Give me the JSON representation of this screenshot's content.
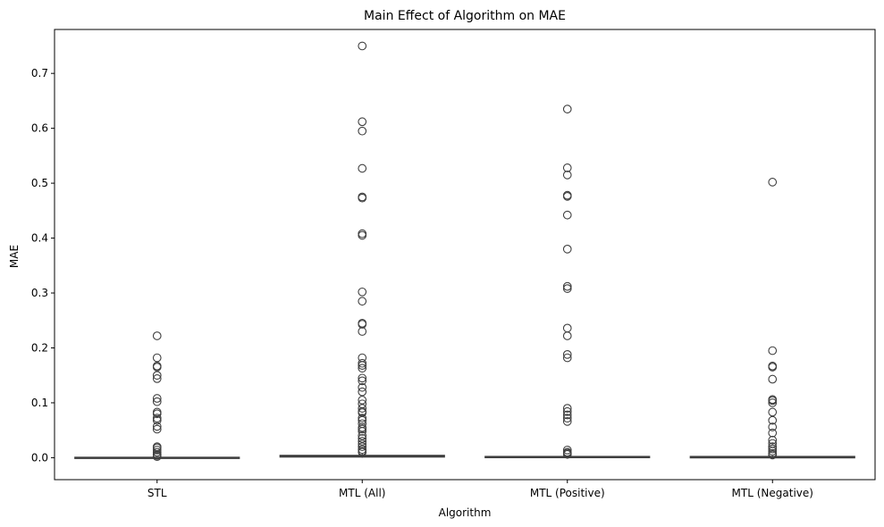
{
  "chart_data": {
    "type": "box",
    "title": "Main Effect of Algorithm on MAE",
    "xlabel": "Algorithm",
    "ylabel": "MAE",
    "ylim": [
      -0.04,
      0.78
    ],
    "yticks": [
      0.0,
      0.1,
      0.2,
      0.3,
      0.4,
      0.5,
      0.6,
      0.7
    ],
    "ytick_labels": [
      "0.0",
      "0.1",
      "0.2",
      "0.3",
      "0.4",
      "0.5",
      "0.6",
      "0.7"
    ],
    "grid": false,
    "box_color": "#3f3f3f",
    "categories": [
      "STL",
      "MTL (All)",
      "MTL (Positive)",
      "MTL (Negative)"
    ],
    "boxes": [
      {
        "category": "STL",
        "whisker_low": 0.0,
        "q1": 0.0,
        "median": 0.0,
        "q3": 0.0005,
        "whisker_high": 0.001,
        "outliers": [
          0.222,
          0.182,
          0.167,
          0.165,
          0.15,
          0.144,
          0.108,
          0.102,
          0.083,
          0.08,
          0.072,
          0.068,
          0.057,
          0.052,
          0.02,
          0.018,
          0.014,
          0.01,
          0.006,
          0.004,
          0.002
        ]
      },
      {
        "category": "MTL (All)",
        "whisker_low": 0.0,
        "q1": 0.0015,
        "median": 0.002,
        "q3": 0.004,
        "whisker_high": 0.008,
        "outliers": [
          0.75,
          0.612,
          0.595,
          0.527,
          0.475,
          0.473,
          0.408,
          0.405,
          0.302,
          0.285,
          0.245,
          0.243,
          0.23,
          0.182,
          0.172,
          0.168,
          0.163,
          0.145,
          0.14,
          0.128,
          0.12,
          0.105,
          0.098,
          0.09,
          0.084,
          0.082,
          0.072,
          0.068,
          0.062,
          0.055,
          0.052,
          0.048,
          0.04,
          0.035,
          0.03,
          0.025,
          0.02,
          0.015,
          0.012,
          0.01
        ]
      },
      {
        "category": "MTL (Positive)",
        "whisker_low": 0.0,
        "q1": 0.0005,
        "median": 0.001,
        "q3": 0.002,
        "whisker_high": 0.004,
        "outliers": [
          0.635,
          0.528,
          0.515,
          0.478,
          0.476,
          0.442,
          0.38,
          0.312,
          0.308,
          0.236,
          0.222,
          0.188,
          0.182,
          0.09,
          0.084,
          0.078,
          0.072,
          0.066,
          0.014,
          0.01,
          0.008,
          0.006
        ]
      },
      {
        "category": "MTL (Negative)",
        "whisker_low": 0.0,
        "q1": 0.0,
        "median": 0.0005,
        "q3": 0.002,
        "whisker_high": 0.004,
        "outliers": [
          0.502,
          0.195,
          0.167,
          0.165,
          0.143,
          0.106,
          0.104,
          0.1,
          0.083,
          0.068,
          0.056,
          0.045,
          0.032,
          0.026,
          0.02,
          0.016,
          0.012,
          0.008,
          0.005
        ]
      }
    ]
  }
}
